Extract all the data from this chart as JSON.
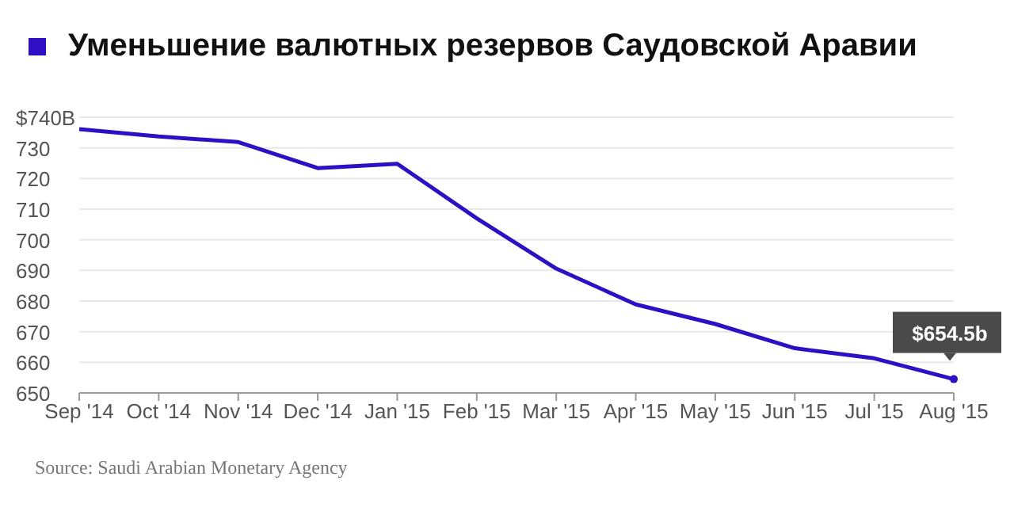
{
  "chart_data": {
    "type": "line",
    "title": "Уменьшение валютных резервов Саудовской Аравии",
    "categories": [
      "Sep '14",
      "Oct '14",
      "Nov '14",
      "Dec '14",
      "Jan '15",
      "Feb '15",
      "Mar '15",
      "Apr '15",
      "May '15",
      "Jun '15",
      "Jul '15",
      "Aug '15"
    ],
    "series": [
      {
        "color": "#2e0fc4",
        "values": [
          736.1,
          733.7,
          731.9,
          723.4,
          724.8,
          707.0,
          690.6,
          678.9,
          672.5,
          664.6,
          661.3,
          654.5
        ]
      }
    ],
    "ylim": [
      650,
      740
    ],
    "yticks": [
      650,
      660,
      670,
      680,
      690,
      700,
      710,
      720,
      730,
      {
        "value": 740,
        "label": "$740B"
      }
    ],
    "grid": "y",
    "marker": "none",
    "line_style": "solid",
    "annotations": [
      {
        "text": "$654.5b",
        "x": "Aug '15",
        "y": 654.5
      },
      "Source: Saudi Arabian Monetary Agency"
    ]
  }
}
